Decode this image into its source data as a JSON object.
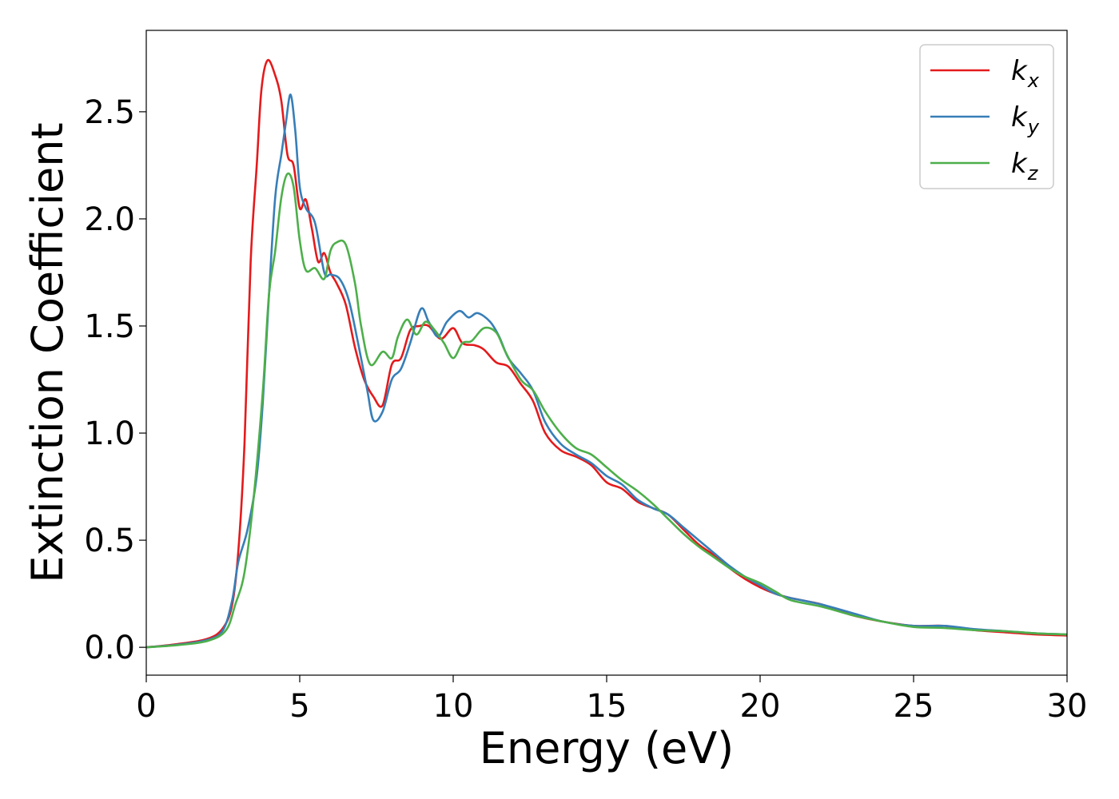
{
  "chart_data": {
    "type": "line",
    "xlabel": "Energy (eV)",
    "ylabel": "Extinction Coefficient",
    "xlim": [
      0,
      30
    ],
    "ylim": [
      -0.13,
      2.88
    ],
    "xticks": [
      0,
      5,
      10,
      15,
      20,
      25,
      30
    ],
    "yticks": [
      0.0,
      0.5,
      1.0,
      1.5,
      2.0,
      2.5
    ],
    "xtick_labels": [
      "0",
      "5",
      "10",
      "15",
      "20",
      "25",
      "30"
    ],
    "ytick_labels": [
      "0.0",
      "0.5",
      "1.0",
      "1.5",
      "2.0",
      "2.5"
    ],
    "grid": false,
    "legend_position": "top-right",
    "series": [
      {
        "name": "k",
        "subscript": "x",
        "color": "#e41a1c",
        "points": [
          [
            0,
            0
          ],
          [
            1,
            0.015
          ],
          [
            2,
            0.04
          ],
          [
            2.5,
            0.09
          ],
          [
            2.8,
            0.2
          ],
          [
            3.0,
            0.45
          ],
          [
            3.2,
            0.95
          ],
          [
            3.4,
            1.8
          ],
          [
            3.6,
            2.25
          ],
          [
            3.75,
            2.6
          ],
          [
            3.95,
            2.74
          ],
          [
            4.2,
            2.67
          ],
          [
            4.4,
            2.55
          ],
          [
            4.6,
            2.3
          ],
          [
            4.8,
            2.25
          ],
          [
            5.0,
            2.05
          ],
          [
            5.2,
            2.09
          ],
          [
            5.4,
            1.95
          ],
          [
            5.6,
            1.8
          ],
          [
            5.8,
            1.84
          ],
          [
            6.0,
            1.75
          ],
          [
            6.2,
            1.7
          ],
          [
            6.5,
            1.6
          ],
          [
            6.8,
            1.4
          ],
          [
            7.1,
            1.25
          ],
          [
            7.4,
            1.17
          ],
          [
            7.7,
            1.13
          ],
          [
            8.0,
            1.32
          ],
          [
            8.3,
            1.35
          ],
          [
            8.6,
            1.48
          ],
          [
            8.9,
            1.5
          ],
          [
            9.2,
            1.5
          ],
          [
            9.6,
            1.44
          ],
          [
            10.0,
            1.49
          ],
          [
            10.3,
            1.42
          ],
          [
            10.7,
            1.41
          ],
          [
            11.0,
            1.39
          ],
          [
            11.4,
            1.33
          ],
          [
            11.8,
            1.31
          ],
          [
            12.2,
            1.23
          ],
          [
            12.6,
            1.15
          ],
          [
            13.0,
            1.0
          ],
          [
            13.5,
            0.92
          ],
          [
            14.0,
            0.89
          ],
          [
            14.5,
            0.85
          ],
          [
            15.0,
            0.77
          ],
          [
            15.5,
            0.74
          ],
          [
            16.0,
            0.68
          ],
          [
            16.5,
            0.65
          ],
          [
            17.0,
            0.62
          ],
          [
            17.5,
            0.55
          ],
          [
            18.0,
            0.48
          ],
          [
            18.5,
            0.43
          ],
          [
            19.0,
            0.37
          ],
          [
            19.5,
            0.32
          ],
          [
            20.0,
            0.28
          ],
          [
            20.5,
            0.25
          ],
          [
            21.0,
            0.23
          ],
          [
            22.0,
            0.2
          ],
          [
            23.0,
            0.15
          ],
          [
            24.0,
            0.12
          ],
          [
            25.0,
            0.1
          ],
          [
            26.0,
            0.1
          ],
          [
            27.0,
            0.08
          ],
          [
            28.0,
            0.07
          ],
          [
            29.0,
            0.06
          ],
          [
            30.0,
            0.055
          ]
        ]
      },
      {
        "name": "k",
        "subscript": "y",
        "color": "#377eb8",
        "points": [
          [
            0,
            0
          ],
          [
            1,
            0.012
          ],
          [
            2,
            0.035
          ],
          [
            2.5,
            0.08
          ],
          [
            2.8,
            0.22
          ],
          [
            3.0,
            0.4
          ],
          [
            3.3,
            0.55
          ],
          [
            3.6,
            0.8
          ],
          [
            3.8,
            1.15
          ],
          [
            4.0,
            1.65
          ],
          [
            4.2,
            2.1
          ],
          [
            4.4,
            2.3
          ],
          [
            4.55,
            2.45
          ],
          [
            4.7,
            2.58
          ],
          [
            4.85,
            2.42
          ],
          [
            5.0,
            2.15
          ],
          [
            5.2,
            2.05
          ],
          [
            5.5,
            1.98
          ],
          [
            5.8,
            1.75
          ],
          [
            6.0,
            1.74
          ],
          [
            6.3,
            1.72
          ],
          [
            6.6,
            1.62
          ],
          [
            6.9,
            1.42
          ],
          [
            7.2,
            1.2
          ],
          [
            7.4,
            1.06
          ],
          [
            7.7,
            1.1
          ],
          [
            8.0,
            1.25
          ],
          [
            8.3,
            1.3
          ],
          [
            8.6,
            1.42
          ],
          [
            8.95,
            1.58
          ],
          [
            9.2,
            1.52
          ],
          [
            9.5,
            1.45
          ],
          [
            9.8,
            1.52
          ],
          [
            10.2,
            1.57
          ],
          [
            10.5,
            1.54
          ],
          [
            10.8,
            1.56
          ],
          [
            11.2,
            1.52
          ],
          [
            11.5,
            1.45
          ],
          [
            11.8,
            1.35
          ],
          [
            12.2,
            1.28
          ],
          [
            12.6,
            1.2
          ],
          [
            13.0,
            1.05
          ],
          [
            13.5,
            0.95
          ],
          [
            14.0,
            0.9
          ],
          [
            14.5,
            0.86
          ],
          [
            15.0,
            0.8
          ],
          [
            15.5,
            0.76
          ],
          [
            16.0,
            0.69
          ],
          [
            16.5,
            0.65
          ],
          [
            17.0,
            0.62
          ],
          [
            17.5,
            0.56
          ],
          [
            18.0,
            0.5
          ],
          [
            18.5,
            0.44
          ],
          [
            19.0,
            0.38
          ],
          [
            19.5,
            0.33
          ],
          [
            20.0,
            0.29
          ],
          [
            20.5,
            0.25
          ],
          [
            21.0,
            0.23
          ],
          [
            22.0,
            0.2
          ],
          [
            23.0,
            0.16
          ],
          [
            24.0,
            0.12
          ],
          [
            25.0,
            0.1
          ],
          [
            26.0,
            0.1
          ],
          [
            27.0,
            0.085
          ],
          [
            28.0,
            0.075
          ],
          [
            29.0,
            0.065
          ],
          [
            30.0,
            0.06
          ]
        ]
      },
      {
        "name": "k",
        "subscript": "z",
        "color": "#4daf4a",
        "points": [
          [
            0,
            0
          ],
          [
            1,
            0.01
          ],
          [
            2,
            0.03
          ],
          [
            2.6,
            0.08
          ],
          [
            2.9,
            0.2
          ],
          [
            3.2,
            0.35
          ],
          [
            3.5,
            0.7
          ],
          [
            3.8,
            1.2
          ],
          [
            4.0,
            1.65
          ],
          [
            4.2,
            1.85
          ],
          [
            4.4,
            2.1
          ],
          [
            4.6,
            2.21
          ],
          [
            4.8,
            2.15
          ],
          [
            5.0,
            1.9
          ],
          [
            5.2,
            1.76
          ],
          [
            5.5,
            1.77
          ],
          [
            5.8,
            1.72
          ],
          [
            6.0,
            1.85
          ],
          [
            6.2,
            1.89
          ],
          [
            6.5,
            1.88
          ],
          [
            6.8,
            1.7
          ],
          [
            7.0,
            1.5
          ],
          [
            7.3,
            1.32
          ],
          [
            7.7,
            1.38
          ],
          [
            8.0,
            1.35
          ],
          [
            8.2,
            1.45
          ],
          [
            8.5,
            1.53
          ],
          [
            8.8,
            1.46
          ],
          [
            9.1,
            1.52
          ],
          [
            9.4,
            1.48
          ],
          [
            9.7,
            1.42
          ],
          [
            10.0,
            1.35
          ],
          [
            10.3,
            1.42
          ],
          [
            10.6,
            1.43
          ],
          [
            11.0,
            1.49
          ],
          [
            11.4,
            1.47
          ],
          [
            11.7,
            1.38
          ],
          [
            12.2,
            1.25
          ],
          [
            12.6,
            1.2
          ],
          [
            13.0,
            1.1
          ],
          [
            13.5,
            1.0
          ],
          [
            14.0,
            0.93
          ],
          [
            14.5,
            0.9
          ],
          [
            15.0,
            0.84
          ],
          [
            15.5,
            0.78
          ],
          [
            16.0,
            0.73
          ],
          [
            16.5,
            0.67
          ],
          [
            17.0,
            0.6
          ],
          [
            17.5,
            0.53
          ],
          [
            18.0,
            0.47
          ],
          [
            18.5,
            0.42
          ],
          [
            19.0,
            0.37
          ],
          [
            19.5,
            0.33
          ],
          [
            20.0,
            0.3
          ],
          [
            20.5,
            0.26
          ],
          [
            21.0,
            0.22
          ],
          [
            22.0,
            0.19
          ],
          [
            23.0,
            0.15
          ],
          [
            24.0,
            0.12
          ],
          [
            25.0,
            0.095
          ],
          [
            26.0,
            0.09
          ],
          [
            27.0,
            0.08
          ],
          [
            28.0,
            0.075
          ],
          [
            29.0,
            0.065
          ],
          [
            30.0,
            0.06
          ]
        ]
      }
    ]
  }
}
